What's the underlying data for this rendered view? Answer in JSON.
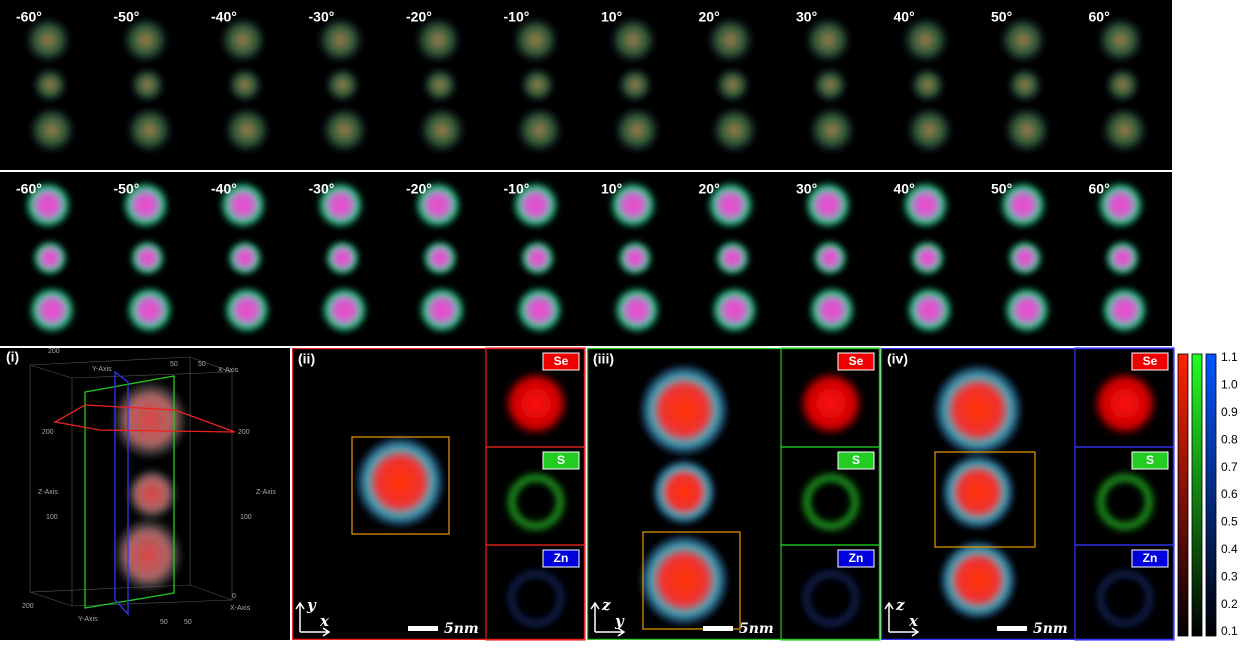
{
  "tilt_rows": [
    {
      "angles": [
        "-60°",
        "-50°",
        "-40°",
        "-30°",
        "-20°",
        "-10°",
        "10°",
        "20°",
        "30°",
        "40°",
        "50°",
        "60°"
      ]
    },
    {
      "angles": [
        "-60°",
        "-50°",
        "-40°",
        "-30°",
        "-20°",
        "-10°",
        "10°",
        "20°",
        "30°",
        "40°",
        "50°",
        "60°"
      ]
    }
  ],
  "volume_panel": {
    "label": "(i)",
    "annotations": [
      "200",
      "50",
      "Y-Axis",
      "50",
      "X-Axis",
      "200",
      "200",
      "Z-Axis",
      "Z-Axis",
      "100",
      "100",
      "200",
      "Y-Axis",
      "50",
      "50",
      "0",
      "X-Axis"
    ]
  },
  "slice_panels": [
    {
      "label": "(ii)",
      "axes": [
        "y",
        "x"
      ],
      "scale_bar": "5nm",
      "channels": [
        "Se",
        "S",
        "Zn"
      ]
    },
    {
      "label": "(iii)",
      "axes": [
        "z",
        "y"
      ],
      "scale_bar": "5nm",
      "channels": [
        "Se",
        "S",
        "Zn"
      ]
    },
    {
      "label": "(iv)",
      "axes": [
        "z",
        "x"
      ],
      "scale_bar": "5nm",
      "channels": [
        "Se",
        "S",
        "Zn"
      ]
    }
  ],
  "colorbar": {
    "ticks": [
      "1.1",
      "1.0",
      "0.9",
      "0.8",
      "0.7",
      "0.6",
      "0.5",
      "0.4",
      "0.3",
      "0.2",
      "0.1"
    ]
  }
}
